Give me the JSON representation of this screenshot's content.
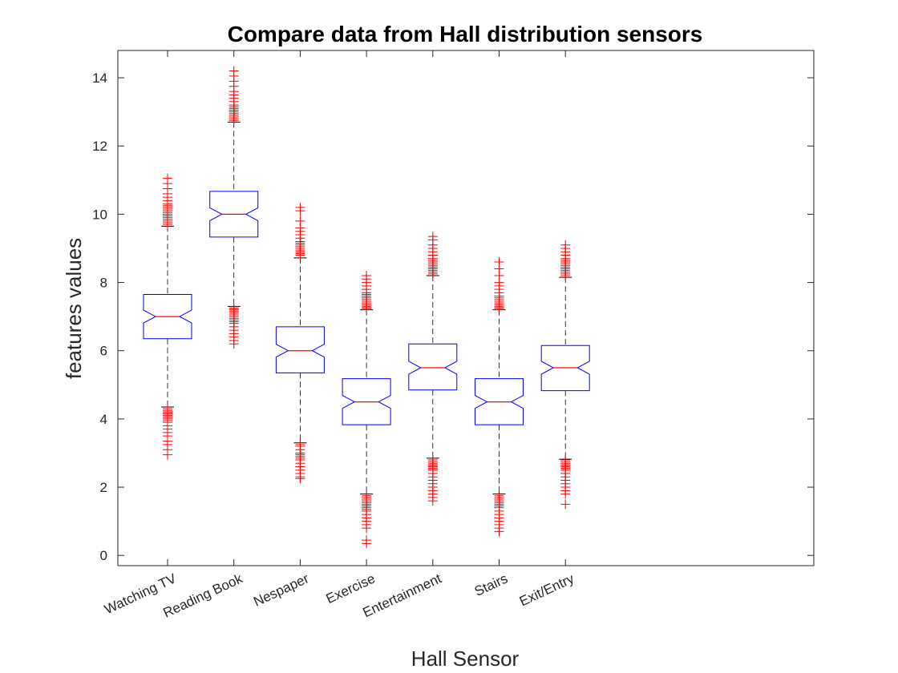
{
  "chart_data": {
    "type": "boxplot",
    "title": "Compare data from Hall distribution sensors",
    "xlabel": "Hall Sensor",
    "ylabel": "features values",
    "ylim": [
      -0.3,
      14.8
    ],
    "yticks": [
      0,
      2,
      4,
      6,
      8,
      10,
      12,
      14
    ],
    "categories": [
      "Watching TV",
      "Reading Book",
      "Nespaper",
      "Exercise",
      "Entertainment",
      "Stairs",
      "Exit/Entry"
    ],
    "boxes": [
      {
        "q1": 6.35,
        "median": 7.0,
        "q3": 7.65,
        "whisker_low": 4.35,
        "whisker_high": 9.65,
        "outliers_low": [
          4.3,
          4.25,
          4.2,
          4.15,
          4.1,
          4.05,
          4.0,
          3.95,
          3.9,
          3.8,
          3.7,
          3.6,
          3.5,
          3.35,
          3.25,
          3.1,
          2.95
        ],
        "outliers_high": [
          9.7,
          9.75,
          9.8,
          9.85,
          9.9,
          9.95,
          10.0,
          10.05,
          10.1,
          10.15,
          10.2,
          10.25,
          10.3,
          10.4,
          10.5,
          10.6,
          10.75,
          10.9,
          11.05
        ]
      },
      {
        "q1": 9.33,
        "median": 10.0,
        "q3": 10.67,
        "whisker_low": 7.3,
        "whisker_high": 12.7,
        "outliers_low": [
          7.25,
          7.2,
          7.15,
          7.1,
          7.05,
          7.0,
          6.95,
          6.9,
          6.85,
          6.8,
          6.7,
          6.6,
          6.5,
          6.4,
          6.3,
          6.2
        ],
        "outliers_high": [
          12.75,
          12.8,
          12.85,
          12.9,
          12.95,
          13.0,
          13.05,
          13.1,
          13.15,
          13.2,
          13.3,
          13.4,
          13.5,
          13.6,
          13.75,
          13.9,
          14.05,
          14.2
        ]
      },
      {
        "q1": 5.35,
        "median": 6.0,
        "q3": 6.7,
        "whisker_low": 3.3,
        "whisker_high": 8.72,
        "outliers_low": [
          3.25,
          3.2,
          3.1,
          3.0,
          2.95,
          2.9,
          2.85,
          2.8,
          2.7,
          2.6,
          2.5,
          2.4,
          2.3,
          2.25
        ],
        "outliers_high": [
          8.8,
          8.85,
          8.9,
          8.95,
          9.0,
          9.05,
          9.1,
          9.15,
          9.2,
          9.3,
          9.4,
          9.5,
          9.6,
          9.8,
          10.1,
          10.2
        ]
      },
      {
        "q1": 3.83,
        "median": 4.5,
        "q3": 5.18,
        "whisker_low": 1.8,
        "whisker_high": 7.2,
        "outliers_low": [
          1.75,
          1.7,
          1.65,
          1.6,
          1.55,
          1.5,
          1.45,
          1.4,
          1.35,
          1.3,
          1.2,
          1.1,
          1.0,
          0.9,
          0.8,
          0.45,
          0.35
        ],
        "outliers_high": [
          7.25,
          7.3,
          7.35,
          7.4,
          7.45,
          7.5,
          7.55,
          7.6,
          7.65,
          7.7,
          7.8,
          7.9,
          8.0,
          8.1,
          8.2
        ]
      },
      {
        "q1": 4.85,
        "median": 5.5,
        "q3": 6.2,
        "whisker_low": 2.85,
        "whisker_high": 8.2,
        "outliers_low": [
          2.8,
          2.75,
          2.7,
          2.65,
          2.6,
          2.55,
          2.5,
          2.4,
          2.3,
          2.2,
          2.1,
          2.0,
          1.9,
          1.8,
          1.7,
          1.6
        ],
        "outliers_high": [
          8.25,
          8.3,
          8.35,
          8.4,
          8.45,
          8.5,
          8.55,
          8.6,
          8.65,
          8.7,
          8.8,
          8.9,
          9.0,
          9.1,
          9.25,
          9.35
        ]
      },
      {
        "q1": 3.83,
        "median": 4.5,
        "q3": 5.18,
        "whisker_low": 1.8,
        "whisker_high": 7.2,
        "outliers_low": [
          1.75,
          1.7,
          1.65,
          1.6,
          1.55,
          1.5,
          1.45,
          1.4,
          1.3,
          1.2,
          1.1,
          1.0,
          0.9,
          0.8,
          0.7
        ],
        "outliers_high": [
          7.25,
          7.3,
          7.35,
          7.4,
          7.45,
          7.5,
          7.55,
          7.6,
          7.7,
          7.8,
          7.9,
          8.0,
          8.2,
          8.4,
          8.6
        ]
      },
      {
        "q1": 4.83,
        "median": 5.5,
        "q3": 6.15,
        "whisker_low": 2.82,
        "whisker_high": 8.15,
        "outliers_low": [
          2.8,
          2.75,
          2.7,
          2.65,
          2.6,
          2.55,
          2.5,
          2.4,
          2.3,
          2.2,
          2.1,
          2.0,
          1.9,
          1.8,
          1.5
        ],
        "outliers_high": [
          8.2,
          8.25,
          8.3,
          8.35,
          8.4,
          8.45,
          8.5,
          8.55,
          8.6,
          8.65,
          8.7,
          8.8,
          8.9,
          9.0,
          9.1
        ]
      }
    ],
    "colors": {
      "box": "#0000ff",
      "median": "#ff0000",
      "whisker": "#000000",
      "outlier": "#ff0000",
      "axis": "#262626"
    },
    "grid": false
  }
}
